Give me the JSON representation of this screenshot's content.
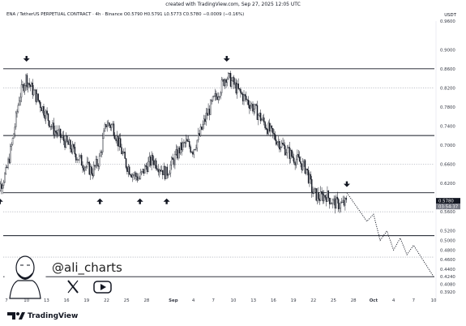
{
  "header": {
    "created": "created with TradingView.com, Sep 27, 2025 12:05 UTC",
    "title": "ENA / TetherUS PERPETUAL CONTRACT · 4h · Binance  O0.5790  H0.5791  L0.5773  C0.5780  −0.0009 (−0.16%)",
    "unit": "USDT"
  },
  "branding": {
    "handle": "@ali_charts",
    "x_icon": "x-logo-icon",
    "youtube_icon": "youtube-icon",
    "avatar": "cartoon-avatar",
    "tradingview_logo": "TradingView"
  },
  "colors": {
    "candle": "#131722",
    "level_line": "#131722",
    "dotted_level": "#b2b5be",
    "projection": "#131722",
    "price_badge": "#131722",
    "countdown_badge": "#787b86"
  },
  "chart_data": {
    "type": "candlestick",
    "symbol": "ENA / TetherUS PERPETUAL CONTRACT",
    "interval": "4h",
    "exchange": "Binance",
    "ohlc_last": {
      "open": 0.579,
      "high": 0.5791,
      "low": 0.5773,
      "close": 0.578,
      "change": -0.0009,
      "change_pct": -0.16
    },
    "y_unit": "USDT",
    "ylim": [
      0.39,
      0.96
    ],
    "y_ticks": [
      "0.9600",
      "0.9000",
      "0.8600",
      "0.8200",
      "0.7800",
      "0.7400",
      "0.7000",
      "0.6600",
      "0.6200",
      "0.5800",
      "0.5600",
      "0.5200",
      "0.5000",
      "0.4800",
      "0.4600",
      "0.4400",
      "0.4240",
      "0.4080",
      "0.3920"
    ],
    "x_ticks": [
      "7",
      "10",
      "13",
      "16",
      "19",
      "22",
      "25",
      "28",
      "Sep",
      "4",
      "7",
      "10",
      "13",
      "16",
      "19",
      "22",
      "25",
      "28",
      "Oct",
      "4",
      "7",
      "10"
    ],
    "last_price_label": "0.5780",
    "countdown_label": "03:54:37",
    "horizontal_levels": [
      {
        "price": 0.86,
        "style": "solid"
      },
      {
        "price": 0.82,
        "style": "dotted"
      },
      {
        "price": 0.72,
        "style": "solid"
      },
      {
        "price": 0.66,
        "style": "dotted"
      },
      {
        "price": 0.6,
        "style": "solid"
      },
      {
        "price": 0.56,
        "style": "dotted"
      },
      {
        "price": 0.51,
        "style": "solid"
      },
      {
        "price": 0.465,
        "style": "dotted"
      },
      {
        "price": 0.424,
        "style": "solid"
      }
    ],
    "arrows_down": [
      "Aug 10",
      "Sep 9",
      "Sep 27"
    ],
    "arrows_up": [
      "Aug 6",
      "Aug 21",
      "Aug 27",
      "Aug 31"
    ],
    "projection": {
      "description": "dotted zig-zag projected path",
      "points": [
        [
          "Sep 27",
          0.6
        ],
        [
          "Sep 30",
          0.54
        ],
        [
          "Oct 1",
          0.555
        ],
        [
          "Oct 2",
          0.5
        ],
        [
          "Oct 3",
          0.52
        ],
        [
          "Oct 4",
          0.48
        ],
        [
          "Oct 5",
          0.505
        ],
        [
          "Oct 6",
          0.47
        ],
        [
          "Oct 7",
          0.49
        ],
        [
          "Oct 10",
          0.424
        ]
      ]
    },
    "price_path": [
      [
        "Aug 5",
        0.59
      ],
      [
        "Aug 6",
        0.612
      ],
      [
        "Aug 7",
        0.64
      ],
      [
        "Aug 8",
        0.71
      ],
      [
        "Aug 9",
        0.8
      ],
      [
        "Aug 10",
        0.84
      ],
      [
        "Aug 11",
        0.815
      ],
      [
        "Aug 12",
        0.79
      ],
      [
        "Aug 13",
        0.765
      ],
      [
        "Aug 14",
        0.735
      ],
      [
        "Aug 15",
        0.72
      ],
      [
        "Aug 16",
        0.705
      ],
      [
        "Aug 17",
        0.69
      ],
      [
        "Aug 18",
        0.67
      ],
      [
        "Aug 19",
        0.655
      ],
      [
        "Aug 20",
        0.645
      ],
      [
        "Aug 21",
        0.67
      ],
      [
        "Aug 22",
        0.745
      ],
      [
        "Aug 23",
        0.74
      ],
      [
        "Aug 24",
        0.7
      ],
      [
        "Aug 25",
        0.66
      ],
      [
        "Aug 26",
        0.64
      ],
      [
        "Aug 27",
        0.63
      ],
      [
        "Aug 28",
        0.655
      ],
      [
        "Aug 29",
        0.67
      ],
      [
        "Aug 30",
        0.655
      ],
      [
        "Aug 31",
        0.64
      ],
      [
        "Sep 1",
        0.665
      ],
      [
        "Sep 2",
        0.69
      ],
      [
        "Sep 3",
        0.705
      ],
      [
        "Sep 4",
        0.69
      ],
      [
        "Sep 5",
        0.72
      ],
      [
        "Sep 6",
        0.76
      ],
      [
        "Sep 7",
        0.79
      ],
      [
        "Sep 8",
        0.815
      ],
      [
        "Sep 9",
        0.845
      ],
      [
        "Sep 10",
        0.83
      ],
      [
        "Sep 11",
        0.81
      ],
      [
        "Sep 12",
        0.795
      ],
      [
        "Sep 13",
        0.78
      ],
      [
        "Sep 14",
        0.76
      ],
      [
        "Sep 15",
        0.74
      ],
      [
        "Sep 16",
        0.72
      ],
      [
        "Sep 17",
        0.705
      ],
      [
        "Sep 18",
        0.69
      ],
      [
        "Sep 19",
        0.675
      ],
      [
        "Sep 20",
        0.665
      ],
      [
        "Sep 21",
        0.65
      ],
      [
        "Sep 22",
        0.6
      ],
      [
        "Sep 23",
        0.59
      ],
      [
        "Sep 24",
        0.595
      ],
      [
        "Sep 25",
        0.58
      ],
      [
        "Sep 26",
        0.575
      ],
      [
        "Sep 27",
        0.578
      ]
    ]
  }
}
